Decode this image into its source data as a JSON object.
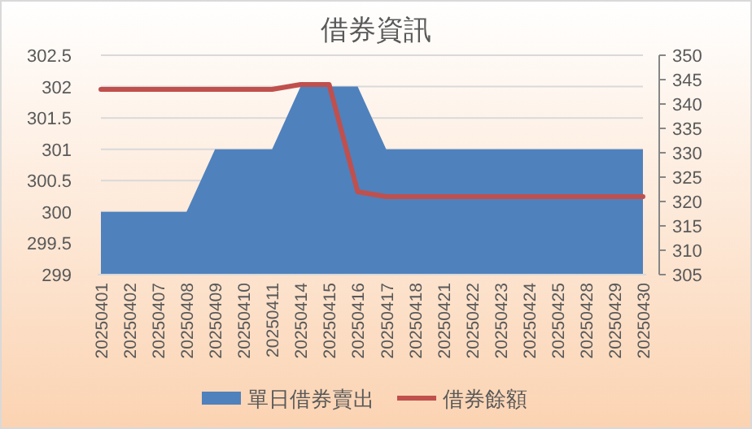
{
  "chart_data": {
    "type": "area",
    "title": "借券資訊",
    "categories": [
      "20250401",
      "20250402",
      "20250407",
      "20250408",
      "20250409",
      "20250410",
      "20250411",
      "20250414",
      "20250415",
      "20250416",
      "20250417",
      "20250418",
      "20250421",
      "20250422",
      "20250423",
      "20250424",
      "20250425",
      "20250428",
      "20250429",
      "20250430"
    ],
    "series": [
      {
        "name": "單日借券賣出",
        "type": "area",
        "color": "#4f81bd",
        "values": [
          300,
          300,
          300,
          300,
          301,
          301,
          301,
          302,
          302,
          302,
          301,
          301,
          301,
          301,
          301,
          301,
          301,
          301,
          301,
          301
        ]
      },
      {
        "name": "借券餘額",
        "type": "line",
        "axis": "y2",
        "color": "#c0504d",
        "values": [
          343,
          343,
          343,
          343,
          343,
          343,
          343,
          344,
          344,
          322,
          321,
          321,
          321,
          321,
          321,
          321,
          321,
          321,
          321,
          321
        ]
      }
    ],
    "ylim": [
      299,
      302.5
    ],
    "yticks": [
      299,
      299.5,
      300,
      300.5,
      301,
      301.5,
      302,
      302.5
    ],
    "y2lim": [
      305,
      350
    ],
    "y2ticks": [
      305,
      310,
      315,
      320,
      325,
      330,
      335,
      340,
      345,
      350
    ],
    "grid": "y",
    "legend": "bottom"
  }
}
